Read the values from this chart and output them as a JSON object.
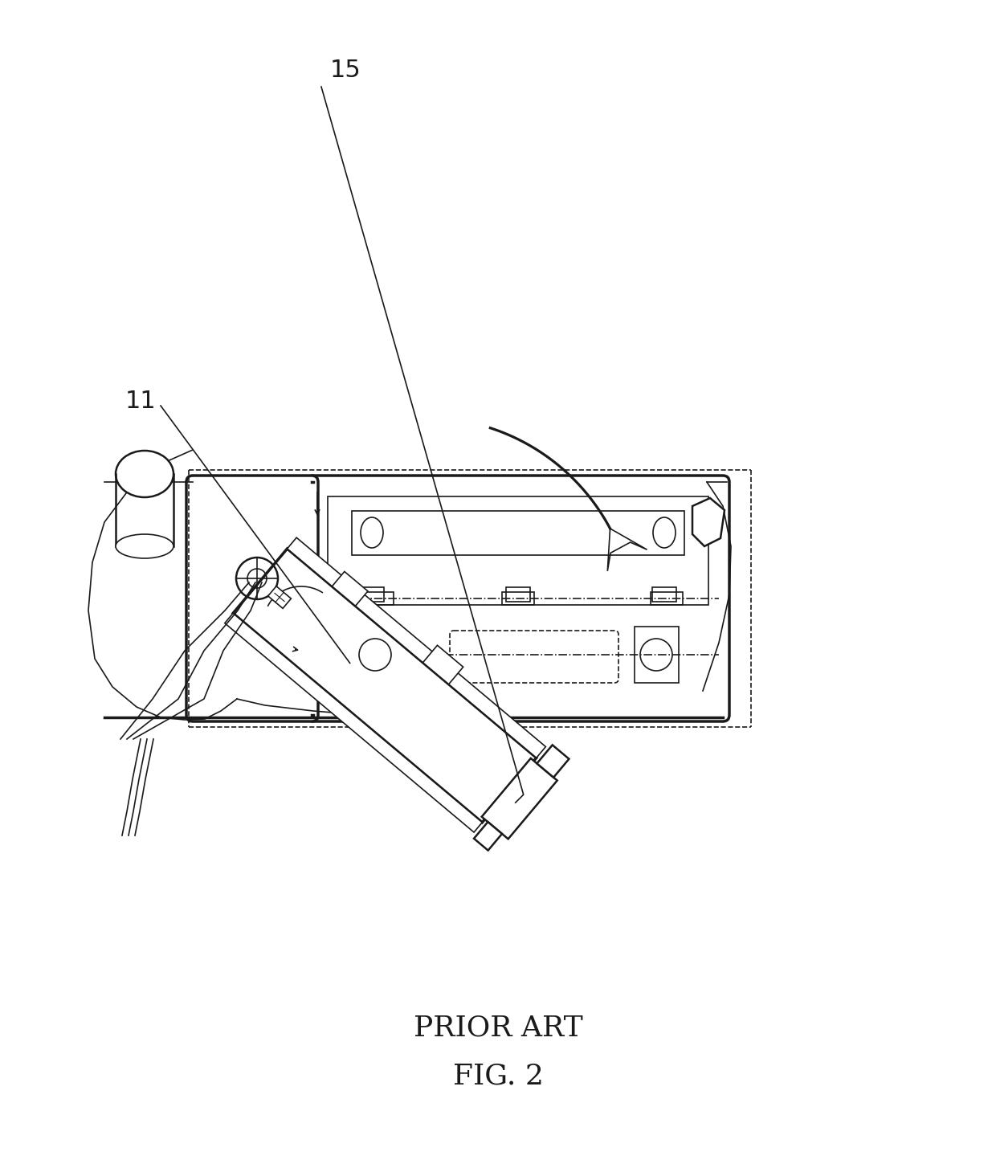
{
  "title_line1": "PRIOR ART",
  "title_line2": "FIG. 2",
  "title_fontsize": 26,
  "bg_color": "#ffffff",
  "line_color": "#1a1a1a",
  "label_15": "15",
  "label_11": "11"
}
